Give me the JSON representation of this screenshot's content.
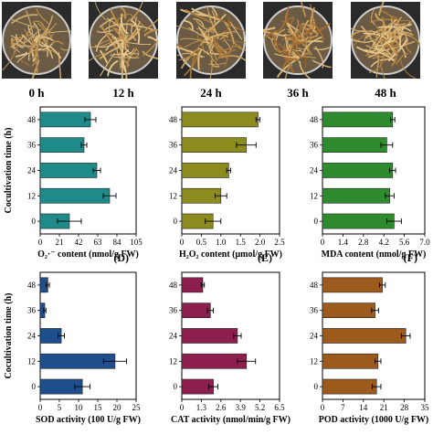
{
  "photos": {
    "labels": [
      "0 h",
      "12 h",
      "24 h",
      "36 h",
      "48 h"
    ]
  },
  "chart_data": [
    {
      "type": "bar",
      "orientation": "horizontal",
      "panel": "",
      "ylabel": "Cocultivation time (h)",
      "xlabel": "O₂·⁻ content (nmol/g FW)",
      "categories": [
        "0",
        "12",
        "24",
        "36",
        "48"
      ],
      "values": [
        32,
        76,
        62,
        48,
        55
      ],
      "errors": [
        13,
        7,
        4,
        3,
        6
      ],
      "xlim": [
        0,
        105
      ],
      "xticks": [
        "0",
        "21",
        "42",
        "63",
        "84",
        "105"
      ],
      "color": "#1f8a8a"
    },
    {
      "type": "bar",
      "orientation": "horizontal",
      "panel": "",
      "ylabel": "",
      "xlabel": "H₂O₂ content (μmol/g FW)",
      "categories": [
        "0",
        "12",
        "24",
        "36",
        "48"
      ],
      "values": [
        0.8,
        1.0,
        1.2,
        1.65,
        1.95
      ],
      "errors": [
        0.2,
        0.15,
        0.05,
        0.25,
        0.05
      ],
      "xlim": [
        0,
        2.5
      ],
      "xticks": [
        "0",
        "0.5",
        "1.0",
        "1.5",
        "2.0",
        "2.5"
      ],
      "color": "#8c8c1e"
    },
    {
      "type": "bar",
      "orientation": "horizontal",
      "panel": "",
      "ylabel": "",
      "xlabel": "MDA content (nmol/g FW)",
      "categories": [
        "0",
        "12",
        "24",
        "36",
        "48"
      ],
      "values": [
        4.9,
        4.6,
        4.8,
        4.4,
        4.8
      ],
      "errors": [
        0.5,
        0.3,
        0.2,
        0.4,
        0.15
      ],
      "xlim": [
        0,
        7.0
      ],
      "xticks": [
        "0",
        "1.4",
        "2.8",
        "4.2",
        "5.6",
        "7.0"
      ],
      "color": "#2e8b2e"
    },
    {
      "type": "bar",
      "orientation": "horizontal",
      "panel": "(D)",
      "ylabel": "Cocultivation time (h)",
      "xlabel": "SOD activity (100 U/g FW)",
      "categories": [
        "0",
        "12",
        "24",
        "36",
        "48"
      ],
      "values": [
        11,
        19.5,
        5.5,
        1.2,
        2.0
      ],
      "errors": [
        2,
        3,
        0.8,
        0.3,
        0.4
      ],
      "xlim": [
        0,
        25
      ],
      "xticks": [
        "0",
        "5",
        "10",
        "15",
        "20",
        "25"
      ],
      "color": "#1f4e8c"
    },
    {
      "type": "bar",
      "orientation": "horizontal",
      "panel": "(E)",
      "ylabel": "",
      "xlabel": "CAT activity (nmol/min/g FW)",
      "categories": [
        "0",
        "12",
        "24",
        "36",
        "48"
      ],
      "values": [
        2.1,
        4.3,
        3.7,
        1.9,
        1.4
      ],
      "errors": [
        0.3,
        0.6,
        0.25,
        0.2,
        0.1
      ],
      "xlim": [
        0,
        6.5
      ],
      "xticks": [
        "0",
        "1.3",
        "2.6",
        "3.9",
        "5.2",
        "6.5"
      ],
      "color": "#8c1f4e"
    },
    {
      "type": "bar",
      "orientation": "horizontal",
      "panel": "(F)",
      "ylabel": "",
      "xlabel": "POD activity (1000 U/g FW)",
      "categories": [
        "0",
        "12",
        "24",
        "36",
        "48"
      ],
      "values": [
        18.5,
        19.0,
        28.5,
        18.0,
        20.5
      ],
      "errors": [
        1.5,
        1.0,
        1.5,
        1.2,
        1.0
      ],
      "xlim": [
        0,
        35
      ],
      "xticks": [
        "0",
        "7",
        "14",
        "21",
        "28",
        "35"
      ],
      "color": "#9c5a1c"
    }
  ]
}
